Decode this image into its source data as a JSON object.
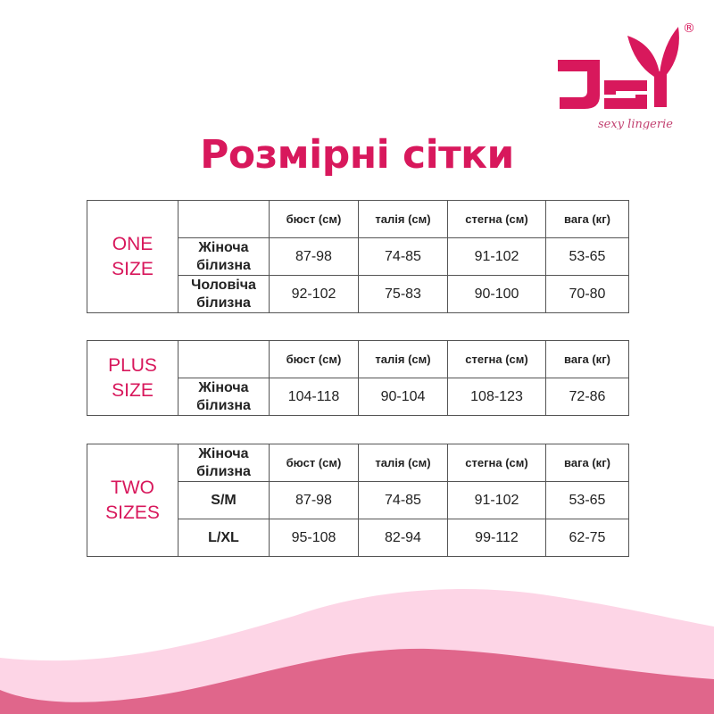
{
  "logo": {
    "brand": "JSY",
    "tagline": "sexy lingerie",
    "registered": "®",
    "color": "#d8185c"
  },
  "title": "Розмірні сітки",
  "columns": [
    "бюст (см)",
    "талія (см)",
    "стегна (см)",
    "вага (кг)"
  ],
  "tables": [
    {
      "group": [
        "ONE",
        "SIZE"
      ],
      "corner": "",
      "rows": [
        {
          "label": [
            "Жіноча",
            "білизна"
          ],
          "values": [
            "87-98",
            "74-85",
            "91-102",
            "53-65"
          ]
        },
        {
          "label": [
            "Чоловіча",
            "білизна"
          ],
          "values": [
            "92-102",
            "75-83",
            "90-100",
            "70-80"
          ]
        }
      ]
    },
    {
      "group": [
        "PLUS",
        "SIZE"
      ],
      "corner": "",
      "rows": [
        {
          "label": [
            "Жіноча",
            "білизна"
          ],
          "values": [
            "104-118",
            "90-104",
            "108-123",
            "72-86"
          ]
        }
      ]
    },
    {
      "group": [
        "TWO",
        "SIZES"
      ],
      "corner": [
        "Жіноча",
        "білизна"
      ],
      "rows": [
        {
          "label": [
            "S/M",
            ""
          ],
          "values": [
            "87-98",
            "74-85",
            "91-102",
            "53-65"
          ]
        },
        {
          "label": [
            "L/XL",
            ""
          ],
          "values": [
            "95-108",
            "82-94",
            "99-112",
            "62-75"
          ]
        }
      ]
    }
  ],
  "colors": {
    "accent": "#d8185c",
    "wave_light": "#fdd5e6",
    "wave_dark": "#e0668b"
  }
}
